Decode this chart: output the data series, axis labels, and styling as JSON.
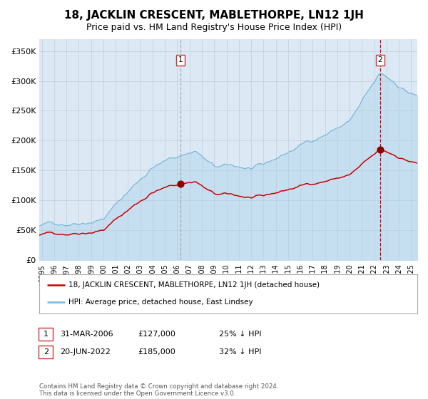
{
  "title": "18, JACKLIN CRESCENT, MABLETHORPE, LN12 1JH",
  "subtitle": "Price paid vs. HM Land Registry's House Price Index (HPI)",
  "title_fontsize": 11,
  "subtitle_fontsize": 9,
  "background_color": "#ffffff",
  "plot_bg_color": "#dce9f5",
  "sale1_date_num": 2006.25,
  "sale1_price": 127000,
  "sale1_label": "31-MAR-2006",
  "sale1_price_str": "£127,000",
  "sale1_pct": "25% ↓ HPI",
  "sale2_date_num": 2022.47,
  "sale2_price": 185000,
  "sale2_label": "20-JUN-2022",
  "sale2_price_str": "£185,000",
  "sale2_pct": "32% ↓ HPI",
  "hpi_color": "#7ab8d9",
  "hpi_fill_color": "#c5dff0",
  "price_color": "#cc0000",
  "sale_dot_color": "#8b0000",
  "vline1_color": "#aaaaaa",
  "vline2_color": "#cc0000",
  "legend_label1": "18, JACKLIN CRESCENT, MABLETHORPE, LN12 1JH (detached house)",
  "legend_label2": "HPI: Average price, detached house, East Lindsey",
  "footer": "Contains HM Land Registry data © Crown copyright and database right 2024.\nThis data is licensed under the Open Government Licence v3.0.",
  "ylim": [
    0,
    370000
  ],
  "yticks": [
    0,
    50000,
    100000,
    150000,
    200000,
    250000,
    300000,
    350000
  ],
  "ytick_labels": [
    "£0",
    "£50K",
    "£100K",
    "£150K",
    "£200K",
    "£250K",
    "£300K",
    "£350K"
  ],
  "xmin": 1994.8,
  "xmax": 2025.5,
  "xtick_years": [
    1995,
    1996,
    1997,
    1998,
    1999,
    2000,
    2001,
    2002,
    2003,
    2004,
    2005,
    2006,
    2007,
    2008,
    2009,
    2010,
    2011,
    2012,
    2013,
    2014,
    2015,
    2016,
    2017,
    2018,
    2019,
    2020,
    2021,
    2022,
    2023,
    2024,
    2025
  ]
}
